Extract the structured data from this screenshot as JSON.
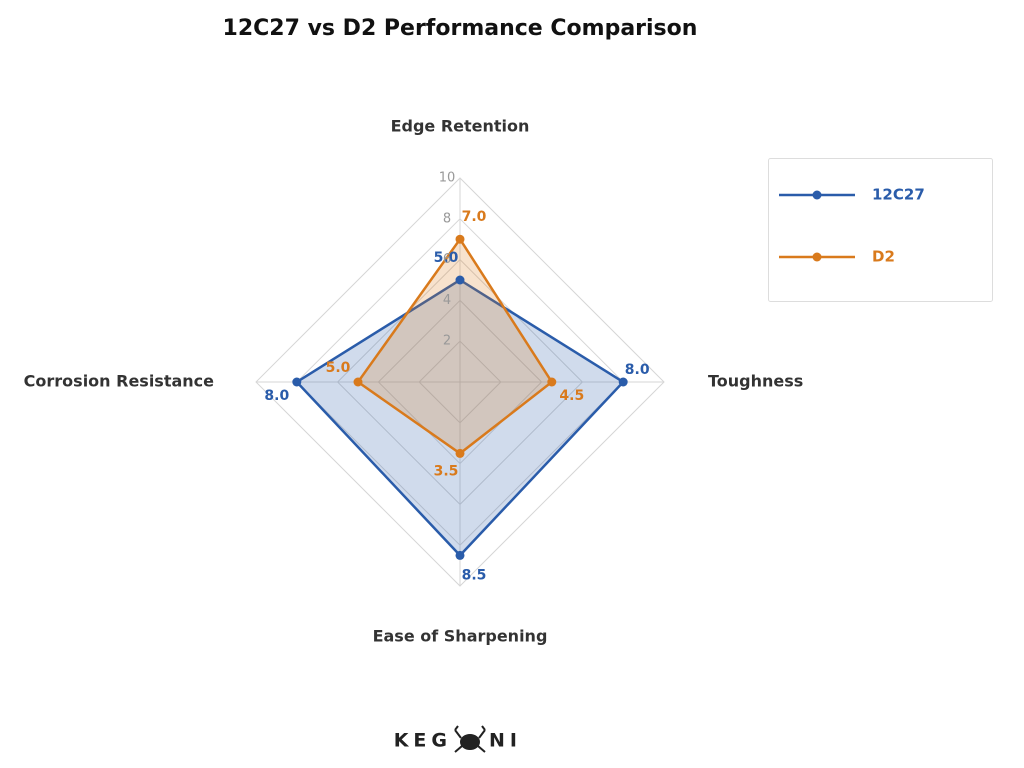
{
  "chart_data": {
    "type": "radar",
    "title": "12C27 vs D2 Performance Comparison",
    "categories": [
      "Edge Retention",
      "Toughness",
      "Ease of Sharpening",
      "Corrosion Resistance"
    ],
    "rlim": [
      0,
      10
    ],
    "rticks": [
      2,
      4,
      6,
      8,
      10
    ],
    "grid": true,
    "legend": "right",
    "series": [
      {
        "name": "12C27",
        "color": "#2a5caa",
        "values": [
          5,
          8,
          8.5,
          8
        ],
        "value_labels": [
          "5.0",
          "8.0",
          "8.5",
          "8.0"
        ]
      },
      {
        "name": "D2",
        "color": "#d97a1c",
        "values": [
          7,
          4.5,
          3.5,
          5
        ],
        "value_labels": [
          "7.0",
          "4.5",
          "3.5",
          "5.0"
        ]
      }
    ]
  },
  "logo": [
    "KEG",
    "NI"
  ]
}
